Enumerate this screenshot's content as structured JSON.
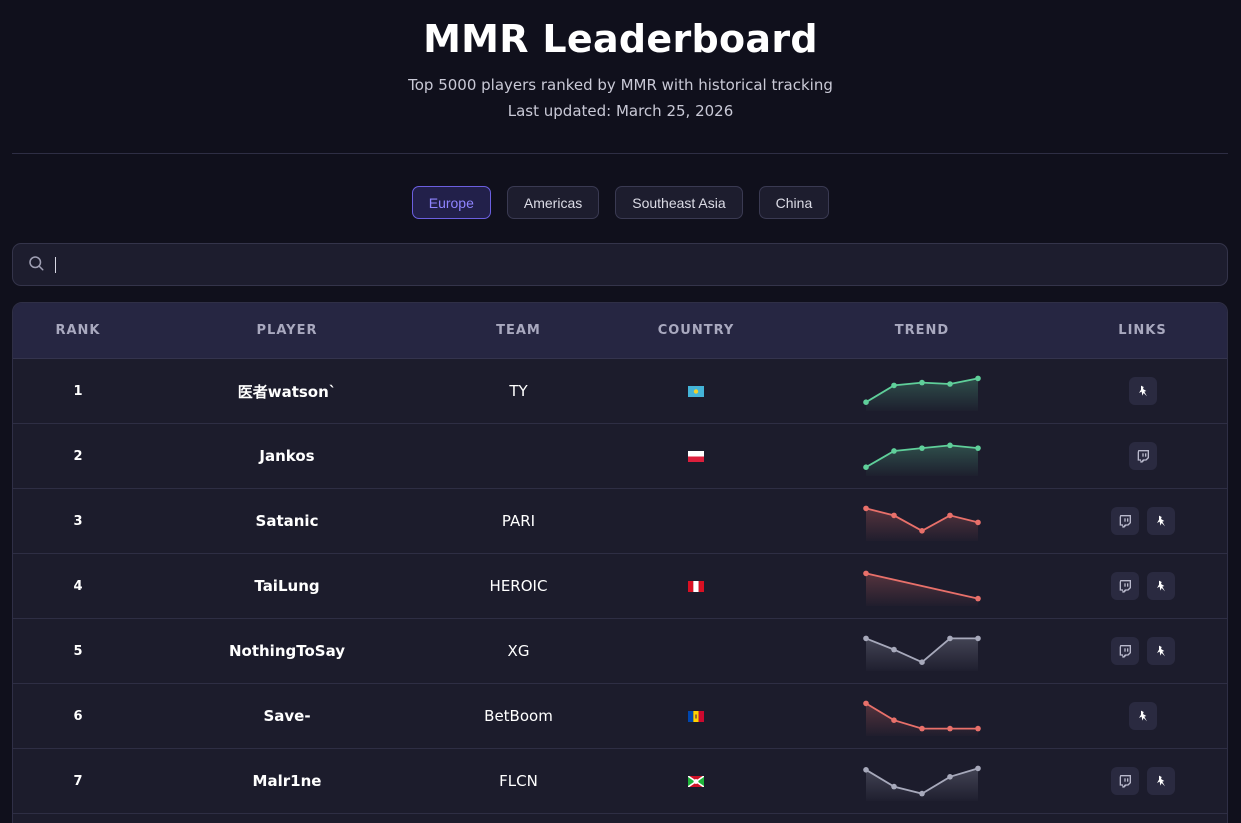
{
  "header": {
    "title": "MMR Leaderboard",
    "subtitle": "Top 5000 players ranked by MMR with historical tracking",
    "updated": "Last updated: March 25, 2026"
  },
  "regions": [
    {
      "label": "Europe",
      "active": true
    },
    {
      "label": "Americas",
      "active": false
    },
    {
      "label": "Southeast Asia",
      "active": false
    },
    {
      "label": "China",
      "active": false
    }
  ],
  "search": {
    "value": "",
    "placeholder": ""
  },
  "table": {
    "headers": {
      "rank": "RANK",
      "player": "PLAYER",
      "team": "TEAM",
      "country": "COUNTRY",
      "trend": "TREND",
      "links": "LINKS"
    },
    "rows": [
      {
        "rank": "1",
        "player": "医者watson`",
        "team": "TY",
        "country": "kazakhstan-flag",
        "trend": [
          0.1,
          0.7,
          0.8,
          0.75,
          0.95
        ],
        "direction": "up",
        "links": [
          "dota-icon"
        ]
      },
      {
        "rank": "2",
        "player": "Jankos",
        "team": "",
        "country": "poland-flag",
        "trend": [
          0.1,
          0.68,
          0.78,
          0.88,
          0.78
        ],
        "direction": "up",
        "links": [
          "twitch-icon"
        ]
      },
      {
        "rank": "3",
        "player": "Satanic",
        "team": "PARI",
        "country": "",
        "trend": [
          0.95,
          0.7,
          0.15,
          0.7,
          0.45
        ],
        "direction": "down",
        "links": [
          "twitch-icon",
          "dota-icon"
        ]
      },
      {
        "rank": "4",
        "player": "TaiLung",
        "team": "HEROIC",
        "country": "peru-flag",
        "trend": [
          0.95,
          0.05
        ],
        "direction": "down",
        "links": [
          "twitch-icon",
          "dota-icon"
        ]
      },
      {
        "rank": "5",
        "player": "NothingToSay",
        "team": "XG",
        "country": "",
        "trend": [
          0.95,
          0.55,
          0.1,
          0.95,
          0.95
        ],
        "direction": "flat",
        "links": [
          "twitch-icon",
          "dota-icon"
        ]
      },
      {
        "rank": "6",
        "player": "Save-",
        "team": "BetBoom",
        "country": "moldova-flag",
        "trend": [
          0.95,
          0.35,
          0.05,
          0.05,
          0.05
        ],
        "direction": "down",
        "links": [
          "dota-icon"
        ]
      },
      {
        "rank": "7",
        "player": "Malr1ne",
        "team": "FLCN",
        "country": "burundi-flag",
        "trend": [
          0.9,
          0.3,
          0.05,
          0.65,
          0.95
        ],
        "direction": "flat",
        "links": [
          "twitch-icon",
          "dota-icon"
        ]
      }
    ]
  },
  "colors": {
    "up": "#5fcf9a",
    "down": "#e8706a",
    "flat": "#a7a9bb",
    "accent": "#6b5fe0"
  }
}
